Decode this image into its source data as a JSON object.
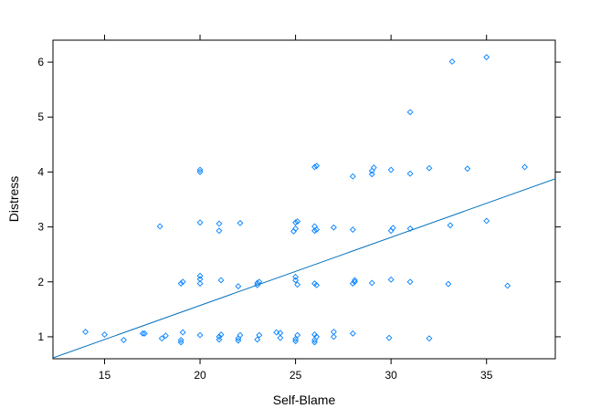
{
  "chart_data": {
    "type": "scatter",
    "title": "",
    "xlabel": "Self-Blame",
    "ylabel": "Distress",
    "xlim": [
      12.3,
      38.6
    ],
    "ylim": [
      0.6,
      6.4
    ],
    "xticks": [
      15,
      20,
      25,
      30,
      35
    ],
    "yticks": [
      1,
      2,
      3,
      4,
      5,
      6
    ],
    "grid": false,
    "point_color": "#0080ff",
    "line_color": "#0072bd",
    "trendline": {
      "slope": 0.124,
      "intercept": -0.91
    },
    "points": [
      [
        14.0,
        1.09
      ],
      [
        15.0,
        1.04
      ],
      [
        16.0,
        0.94
      ],
      [
        17.0,
        1.06
      ],
      [
        17.1,
        1.06
      ],
      [
        18.0,
        0.97
      ],
      [
        18.2,
        1.02
      ],
      [
        17.9,
        3.01
      ],
      [
        19.0,
        0.9
      ],
      [
        19.0,
        0.94
      ],
      [
        19.1,
        1.08
      ],
      [
        19.0,
        1.97
      ],
      [
        19.1,
        2.0
      ],
      [
        20.0,
        1.03
      ],
      [
        20.0,
        1.97
      ],
      [
        20.0,
        2.05
      ],
      [
        20.0,
        2.11
      ],
      [
        20.0,
        3.08
      ],
      [
        20.0,
        4.0
      ],
      [
        20.0,
        4.04
      ],
      [
        21.0,
        0.95
      ],
      [
        21.0,
        1.0
      ],
      [
        21.1,
        1.04
      ],
      [
        21.1,
        2.03
      ],
      [
        21.0,
        2.93
      ],
      [
        21.0,
        3.06
      ],
      [
        22.0,
        0.93
      ],
      [
        22.0,
        0.97
      ],
      [
        22.1,
        1.03
      ],
      [
        22.0,
        1.92
      ],
      [
        22.1,
        3.07
      ],
      [
        23.0,
        0.95
      ],
      [
        23.1,
        1.03
      ],
      [
        23.0,
        1.94
      ],
      [
        23.0,
        1.98
      ],
      [
        23.1,
        2.0
      ],
      [
        24.0,
        1.08
      ],
      [
        24.2,
        1.07
      ],
      [
        24.2,
        0.98
      ],
      [
        25.0,
        0.92
      ],
      [
        25.0,
        0.96
      ],
      [
        25.1,
        1.03
      ],
      [
        25.0,
        2.03
      ],
      [
        25.0,
        2.09
      ],
      [
        25.1,
        1.95
      ],
      [
        24.9,
        2.92
      ],
      [
        25.0,
        2.97
      ],
      [
        25.0,
        3.08
      ],
      [
        25.1,
        3.1
      ],
      [
        26.0,
        0.9
      ],
      [
        26.0,
        0.94
      ],
      [
        26.1,
        1.0
      ],
      [
        26.0,
        1.04
      ],
      [
        26.0,
        1.97
      ],
      [
        26.1,
        1.94
      ],
      [
        26.0,
        2.93
      ],
      [
        26.1,
        2.95
      ],
      [
        26.0,
        3.01
      ],
      [
        26.0,
        4.09
      ],
      [
        26.1,
        4.11
      ],
      [
        27.0,
        1.0
      ],
      [
        27.0,
        1.09
      ],
      [
        27.0,
        2.99
      ],
      [
        28.0,
        1.06
      ],
      [
        28.0,
        1.97
      ],
      [
        28.1,
        2.0
      ],
      [
        28.1,
        2.03
      ],
      [
        28.0,
        2.95
      ],
      [
        28.0,
        3.92
      ],
      [
        29.0,
        1.98
      ],
      [
        29.0,
        3.96
      ],
      [
        29.0,
        4.02
      ],
      [
        29.1,
        4.08
      ],
      [
        29.9,
        0.98
      ],
      [
        30.0,
        2.04
      ],
      [
        30.0,
        2.93
      ],
      [
        30.1,
        2.98
      ],
      [
        30.0,
        4.04
      ],
      [
        31.0,
        2.0
      ],
      [
        31.0,
        2.97
      ],
      [
        31.0,
        3.97
      ],
      [
        31.0,
        5.09
      ],
      [
        32.0,
        0.97
      ],
      [
        32.0,
        4.07
      ],
      [
        33.0,
        1.96
      ],
      [
        33.1,
        3.03
      ],
      [
        33.2,
        6.01
      ],
      [
        34.0,
        4.06
      ],
      [
        35.0,
        3.11
      ],
      [
        35.0,
        6.09
      ],
      [
        36.1,
        1.93
      ],
      [
        37.0,
        4.09
      ]
    ]
  }
}
